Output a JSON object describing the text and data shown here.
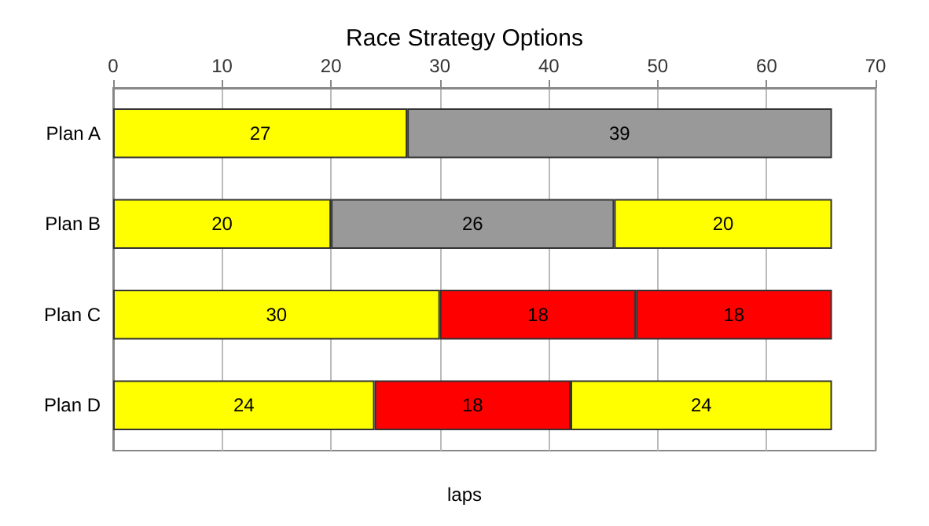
{
  "chart_data": {
    "type": "bar",
    "orientation": "horizontal",
    "stacked": true,
    "title": "Race Strategy Options",
    "xlabel": "laps",
    "categories": [
      "Plan A",
      "Plan B",
      "Plan C",
      "Plan D"
    ],
    "series": [
      {
        "values": [
          27,
          20,
          30,
          24
        ],
        "colors": [
          "#ffff00",
          "#ffff00",
          "#ffff00",
          "#ffff00"
        ]
      },
      {
        "values": [
          39,
          26,
          18,
          18
        ],
        "colors": [
          "#999999",
          "#999999",
          "#ff0000",
          "#ff0000"
        ]
      },
      {
        "values": [
          null,
          20,
          18,
          24
        ],
        "colors": [
          null,
          "#ffff00",
          "#ff0000",
          "#ffff00"
        ]
      }
    ],
    "xlim": [
      0,
      70
    ],
    "xticks": [
      0,
      10,
      20,
      30,
      40,
      50,
      60,
      70
    ],
    "grid": "x",
    "data_labels": true
  }
}
